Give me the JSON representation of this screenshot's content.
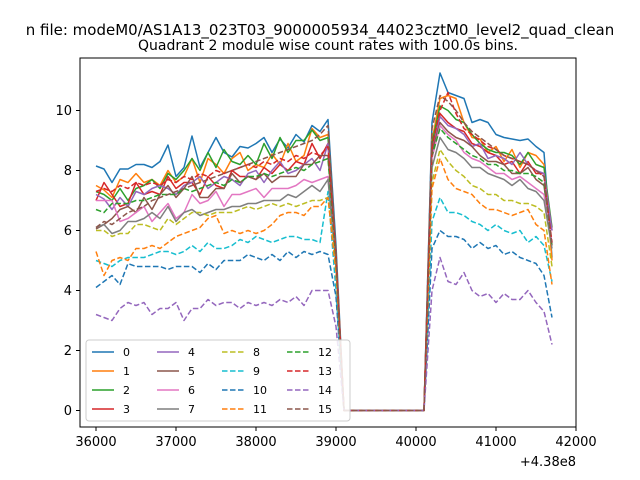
{
  "chart_data": {
    "type": "line",
    "suptitle": "n file: modeM0/AS1A13_023T03_9000005934_44023cztM0_level2_quad_clean",
    "title": "Quadrant 2 module wise count rates with 100.0s bins.",
    "xlabel": "",
    "ylabel": "",
    "x_offset_label": "+4.38e8",
    "xlim": [
      35800,
      42000
    ],
    "ylim": [
      -0.55,
      11.75
    ],
    "xticks": [
      "36000",
      "37000",
      "38000",
      "39000",
      "40000",
      "41000",
      "42000"
    ],
    "yticks": [
      "0",
      "2",
      "4",
      "6",
      "8",
      "10"
    ],
    "grid": false,
    "legend_position": "lower-left",
    "x": [
      36000,
      36100,
      36200,
      36300,
      36400,
      36500,
      36600,
      36700,
      36800,
      36900,
      37000,
      37100,
      37200,
      37300,
      37400,
      37500,
      37600,
      37700,
      37800,
      37900,
      38000,
      38100,
      38200,
      38300,
      38400,
      38500,
      38600,
      38700,
      38800,
      38900,
      39000,
      39100,
      39200,
      39300,
      39400,
      39500,
      39600,
      39700,
      39800,
      39900,
      40000,
      40100,
      40200,
      40300,
      40400,
      40500,
      40600,
      40700,
      40800,
      40900,
      41000,
      41100,
      41200,
      41300,
      41400,
      41500,
      41600,
      41700
    ],
    "series": [
      {
        "name": "0",
        "color": "#1f77b4",
        "dash": "solid",
        "values": [
          8.15,
          8.05,
          7.6,
          8.05,
          8.05,
          8.2,
          8.2,
          8.1,
          8.3,
          8.85,
          7.8,
          8.1,
          9.15,
          8.1,
          8.6,
          9.1,
          8.6,
          8.45,
          8.8,
          8.75,
          8.9,
          9.1,
          8.6,
          9.05,
          8.75,
          9.2,
          8.95,
          9.5,
          9.3,
          9.7,
          5.5,
          0,
          0,
          0,
          0,
          0,
          0,
          0,
          0,
          0,
          0,
          0,
          9.6,
          11.25,
          10.6,
          10.5,
          10.4,
          9.6,
          9.7,
          9.6,
          9.2,
          9.1,
          9.05,
          9.0,
          9.05,
          8.8,
          8.6,
          5.1
        ]
      },
      {
        "name": "1",
        "color": "#ff7f0e",
        "dash": "solid",
        "values": [
          7.5,
          7.35,
          7.1,
          7.7,
          7.6,
          7.9,
          7.6,
          7.7,
          7.5,
          8.0,
          7.6,
          7.8,
          8.4,
          7.6,
          8.4,
          8.2,
          7.9,
          8.4,
          8.6,
          8.0,
          8.2,
          8.1,
          8.55,
          8.2,
          8.9,
          8.3,
          8.5,
          9.4,
          9.1,
          9.2,
          5.2,
          0,
          0,
          0,
          0,
          0,
          0,
          0,
          0,
          0,
          0,
          0,
          9.0,
          10.4,
          10.5,
          10.4,
          9.6,
          9.1,
          9.05,
          8.6,
          8.8,
          8.3,
          8.7,
          8.1,
          8.6,
          8.5,
          8.2,
          5.0
        ]
      },
      {
        "name": "2",
        "color": "#2ca02c",
        "dash": "solid",
        "values": [
          7.3,
          7.2,
          7.0,
          7.4,
          7.0,
          7.4,
          7.5,
          7.7,
          7.4,
          7.9,
          7.7,
          8.0,
          8.4,
          8.0,
          8.6,
          8.1,
          8.7,
          8.3,
          8.2,
          8.5,
          8.2,
          8.9,
          8.4,
          9.1,
          8.6,
          9.0,
          9.0,
          9.35,
          9.0,
          9.1,
          5.1,
          0,
          0,
          0,
          0,
          0,
          0,
          0,
          0,
          0,
          0,
          0,
          8.9,
          10.15,
          10.0,
          9.7,
          9.6,
          9.2,
          8.9,
          8.7,
          8.6,
          8.6,
          8.5,
          8.2,
          8.6,
          8.2,
          8.1,
          6.1
        ]
      },
      {
        "name": "3",
        "color": "#d62728",
        "dash": "solid",
        "values": [
          7.0,
          7.6,
          7.2,
          6.8,
          6.9,
          7.6,
          7.2,
          7.3,
          7.2,
          7.8,
          7.4,
          7.6,
          7.6,
          7.2,
          7.8,
          7.5,
          7.4,
          8.0,
          7.8,
          7.8,
          7.7,
          8.1,
          7.9,
          8.2,
          8.0,
          8.3,
          8.2,
          8.9,
          8.4,
          8.9,
          5.0,
          0,
          0,
          0,
          0,
          0,
          0,
          0,
          0,
          0,
          0,
          0,
          8.7,
          9.9,
          9.6,
          9.4,
          9.3,
          8.9,
          8.8,
          8.6,
          8.5,
          8.2,
          8.3,
          7.9,
          8.3,
          7.9,
          7.9,
          6.0
        ]
      },
      {
        "name": "4",
        "color": "#9467bd",
        "dash": "solid",
        "values": [
          7.2,
          7.05,
          6.7,
          7.1,
          6.8,
          7.3,
          7.2,
          7.4,
          7.5,
          7.4,
          7.2,
          7.5,
          7.6,
          7.8,
          7.4,
          7.6,
          7.8,
          7.7,
          7.5,
          7.9,
          8.0,
          7.6,
          8.0,
          8.3,
          7.9,
          8.0,
          8.2,
          8.4,
          8.0,
          8.9,
          5.0,
          0,
          0,
          0,
          0,
          0,
          0,
          0,
          0,
          0,
          0,
          0,
          8.6,
          9.8,
          9.5,
          9.4,
          9.2,
          8.8,
          8.9,
          8.4,
          8.5,
          8.4,
          8.2,
          8.6,
          8.2,
          8.0,
          7.9,
          6.0
        ]
      },
      {
        "name": "5",
        "color": "#8c564b",
        "dash": "solid",
        "values": [
          6.05,
          6.2,
          6.4,
          6.7,
          6.8,
          6.6,
          7.1,
          6.7,
          7.2,
          7.5,
          7.1,
          7.4,
          7.8,
          7.1,
          7.1,
          7.4,
          7.4,
          7.9,
          7.6,
          7.8,
          7.7,
          7.9,
          7.6,
          7.8,
          7.8,
          7.8,
          8.2,
          8.2,
          8.5,
          8.5,
          5.0,
          0,
          0,
          0,
          0,
          0,
          0,
          0,
          0,
          0,
          0,
          0,
          8.6,
          9.6,
          9.3,
          9.1,
          9.0,
          8.8,
          8.5,
          8.3,
          8.3,
          8.2,
          7.9,
          7.9,
          8.1,
          7.7,
          7.5,
          5.5
        ]
      },
      {
        "name": "6",
        "color": "#e377c2",
        "dash": "solid",
        "values": [
          7.0,
          7.0,
          7.0,
          6.3,
          6.4,
          6.6,
          6.8,
          6.3,
          6.6,
          6.9,
          6.4,
          6.6,
          7.2,
          6.9,
          7.0,
          7.3,
          6.8,
          7.2,
          7.2,
          7.3,
          7.4,
          7.1,
          7.4,
          7.4,
          7.4,
          7.5,
          7.7,
          7.6,
          7.7,
          7.8,
          4.9,
          0,
          0,
          0,
          0,
          0,
          0,
          0,
          0,
          0,
          0,
          0,
          8.4,
          9.5,
          9.2,
          9.0,
          8.6,
          8.4,
          8.3,
          8.1,
          7.9,
          7.9,
          7.7,
          7.8,
          7.6,
          7.4,
          7.2,
          5.6
        ]
      },
      {
        "name": "7",
        "color": "#7f7f7f",
        "dash": "solid",
        "values": [
          6.1,
          6.2,
          5.9,
          6.0,
          6.3,
          6.3,
          6.4,
          6.6,
          6.4,
          6.8,
          6.3,
          6.6,
          6.7,
          6.5,
          6.6,
          6.7,
          6.7,
          6.8,
          6.8,
          6.9,
          6.9,
          7.0,
          7.0,
          7.0,
          7.2,
          7.1,
          7.3,
          7.5,
          7.3,
          7.7,
          4.8,
          0,
          0,
          0,
          0,
          0,
          0,
          0,
          0,
          0,
          0,
          0,
          8.1,
          9.1,
          8.7,
          8.6,
          8.4,
          8.1,
          8.1,
          7.9,
          7.8,
          7.7,
          7.5,
          7.7,
          7.4,
          7.3,
          7.0,
          5.4
        ]
      },
      {
        "name": "8",
        "color": "#bcbd22",
        "dash": "dashed",
        "values": [
          6.0,
          6.0,
          5.8,
          5.9,
          5.9,
          6.2,
          6.2,
          6.1,
          6.0,
          6.4,
          6.2,
          6.4,
          6.6,
          6.6,
          6.5,
          6.6,
          6.6,
          6.6,
          6.7,
          6.8,
          6.7,
          6.8,
          6.9,
          6.8,
          6.9,
          6.8,
          6.9,
          7.0,
          7.0,
          7.1,
          4.7,
          0,
          0,
          0,
          0,
          0,
          0,
          0,
          0,
          0,
          0,
          0,
          7.6,
          8.7,
          8.3,
          8.0,
          7.8,
          7.5,
          7.4,
          7.2,
          7.2,
          7.0,
          7.0,
          6.9,
          6.9,
          6.8,
          6.6,
          4.8
        ]
      },
      {
        "name": "9",
        "color": "#17becf",
        "dash": "dashed",
        "values": [
          5.0,
          4.9,
          4.8,
          5.0,
          5.1,
          5.1,
          5.1,
          5.2,
          5.3,
          5.3,
          5.2,
          5.3,
          5.5,
          5.3,
          5.6,
          5.4,
          5.4,
          5.5,
          5.7,
          5.6,
          5.8,
          5.7,
          5.6,
          5.7,
          5.8,
          5.8,
          5.7,
          5.7,
          5.6,
          7.3,
          4.0,
          0,
          0,
          0,
          0,
          0,
          0,
          0,
          0,
          0,
          0,
          0,
          6.3,
          7.1,
          6.6,
          6.6,
          6.5,
          6.3,
          6.2,
          6.0,
          6.2,
          6.0,
          5.9,
          6.0,
          5.6,
          5.8,
          5.5,
          4.3
        ]
      },
      {
        "name": "10",
        "color": "#1f77b4",
        "dash": "dashed",
        "values": [
          4.1,
          4.3,
          4.5,
          4.2,
          4.9,
          4.8,
          4.8,
          4.8,
          4.8,
          4.7,
          4.8,
          4.8,
          4.8,
          4.6,
          4.9,
          4.7,
          5.0,
          5.0,
          5.0,
          5.2,
          5.1,
          5.0,
          5.2,
          5.0,
          5.3,
          5.1,
          5.3,
          5.2,
          5.3,
          5.2,
          3.8,
          0,
          0,
          0,
          0,
          0,
          0,
          0,
          0,
          0,
          0,
          0,
          5.4,
          6.0,
          5.8,
          5.8,
          5.7,
          5.4,
          5.6,
          5.4,
          5.5,
          5.2,
          5.3,
          5.1,
          5.0,
          4.9,
          4.5,
          3.1
        ]
      },
      {
        "name": "11",
        "color": "#ff7f0e",
        "dash": "dashed",
        "values": [
          5.3,
          4.5,
          5.0,
          5.1,
          5.0,
          5.4,
          5.4,
          5.5,
          5.4,
          5.6,
          5.8,
          5.9,
          6.0,
          6.1,
          6.4,
          6.5,
          5.9,
          6.0,
          5.9,
          6.0,
          5.9,
          6.0,
          6.2,
          6.5,
          6.6,
          6.6,
          6.5,
          6.8,
          6.8,
          7.1,
          4.6,
          0,
          0,
          0,
          0,
          0,
          0,
          0,
          0,
          0,
          0,
          0,
          7.4,
          8.4,
          7.7,
          7.4,
          7.3,
          7.2,
          6.9,
          6.7,
          6.7,
          6.6,
          6.5,
          6.6,
          6.7,
          6.2,
          6.0,
          4.2
        ]
      },
      {
        "name": "12",
        "color": "#2ca02c",
        "dash": "dashed",
        "values": [
          6.7,
          6.6,
          6.9,
          6.9,
          6.9,
          7.0,
          7.0,
          7.1,
          7.2,
          7.2,
          7.2,
          7.4,
          7.3,
          7.4,
          7.5,
          7.6,
          7.5,
          7.7,
          7.6,
          7.8,
          7.8,
          7.9,
          7.8,
          7.9,
          8.0,
          8.1,
          8.0,
          8.2,
          8.3,
          8.4,
          5.0,
          0,
          0,
          0,
          0,
          0,
          0,
          0,
          0,
          0,
          0,
          0,
          8.5,
          9.4,
          9.1,
          8.9,
          8.7,
          8.5,
          8.4,
          8.2,
          8.2,
          8.0,
          8.0,
          7.9,
          7.9,
          7.8,
          7.6,
          5.5
        ]
      },
      {
        "name": "13",
        "color": "#d62728",
        "dash": "dashed",
        "values": [
          7.3,
          7.4,
          7.3,
          7.5,
          7.4,
          7.6,
          7.5,
          7.6,
          7.5,
          7.7,
          7.6,
          7.8,
          7.7,
          7.9,
          7.8,
          8.0,
          7.9,
          8.0,
          8.1,
          8.2,
          8.1,
          8.3,
          8.2,
          8.4,
          8.3,
          8.5,
          8.4,
          8.6,
          8.5,
          8.8,
          5.2,
          0,
          0,
          0,
          0,
          0,
          0,
          0,
          0,
          0,
          0,
          0,
          8.8,
          10.0,
          10.6,
          9.9,
          9.4,
          9.2,
          9.0,
          8.8,
          8.7,
          8.5,
          8.4,
          8.3,
          8.2,
          8.0,
          7.8,
          5.6
        ]
      },
      {
        "name": "14",
        "color": "#9467bd",
        "dash": "dashed",
        "values": [
          3.2,
          3.1,
          3.0,
          3.4,
          3.6,
          3.5,
          3.6,
          3.2,
          3.4,
          3.4,
          3.6,
          3.0,
          3.4,
          3.4,
          3.7,
          3.5,
          3.6,
          3.6,
          3.4,
          3.6,
          3.5,
          3.6,
          3.5,
          3.7,
          3.6,
          3.8,
          3.5,
          4.0,
          4.0,
          4.0,
          2.8,
          0,
          0,
          0,
          0,
          0,
          0,
          0,
          0,
          0,
          0,
          0,
          4.0,
          5.1,
          4.3,
          4.2,
          4.6,
          4.0,
          3.8,
          3.9,
          3.6,
          3.9,
          3.7,
          3.7,
          4.0,
          3.6,
          3.3,
          2.2
        ]
      },
      {
        "name": "15",
        "color": "#8c564b",
        "dash": "dashed",
        "values": [
          6.1,
          6.3,
          6.2,
          6.4,
          6.6,
          6.7,
          6.8,
          7.0,
          7.1,
          7.2,
          7.3,
          7.4,
          7.5,
          7.6,
          7.7,
          7.8,
          7.9,
          8.0,
          8.1,
          8.2,
          8.3,
          8.4,
          8.5,
          8.6,
          8.7,
          8.8,
          8.9,
          9.0,
          9.2,
          9.5,
          5.2,
          0,
          0,
          0,
          0,
          0,
          0,
          0,
          0,
          0,
          0,
          0,
          9.4,
          10.5,
          10.3,
          10.0,
          9.6,
          9.3,
          9.1,
          8.9,
          8.7,
          8.5,
          8.4,
          8.3,
          8.2,
          8.0,
          7.8,
          5.5
        ]
      }
    ]
  }
}
